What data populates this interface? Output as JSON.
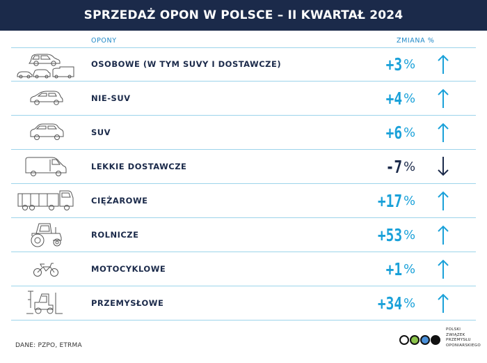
{
  "header": {
    "title": "SPRZEDAŻ OPON W POLSCE – II KWARTAŁ 2024"
  },
  "columns": {
    "tyres": "OPONY",
    "change": "ZMIANA %"
  },
  "rows": [
    {
      "label": "OSOBOWE (W TYM SUVY I DOSTAWCZE)",
      "value": "+3",
      "unit": "%",
      "direction": "up",
      "icon": "passenger-cars-icon"
    },
    {
      "label": "NIE-SUV",
      "value": "+4",
      "unit": "%",
      "direction": "up",
      "icon": "hatchback-car-icon"
    },
    {
      "label": "SUV",
      "value": "+6",
      "unit": "%",
      "direction": "up",
      "icon": "suv-car-icon"
    },
    {
      "label": "LEKKIE DOSTAWCZE",
      "value": "-7",
      "unit": "%",
      "direction": "down",
      "icon": "van-icon"
    },
    {
      "label": "CIĘŻAROWE",
      "value": "+17",
      "unit": "%",
      "direction": "up",
      "icon": "truck-icon"
    },
    {
      "label": "ROLNICZE",
      "value": "+53",
      "unit": "%",
      "direction": "up",
      "icon": "tractor-icon"
    },
    {
      "label": "MOTOCYKLOWE",
      "value": "+1",
      "unit": "%",
      "direction": "up",
      "icon": "motorcycle-icon"
    },
    {
      "label": "PRZEMYSŁOWE",
      "value": "+34",
      "unit": "%",
      "direction": "up",
      "icon": "forklift-icon"
    }
  ],
  "footer": {
    "source": "DANE: PZPO, ETRMA",
    "logo_lines": [
      "POLSKI",
      "ZWIĄZEK",
      "PRZEMYSŁU",
      "OPONIARSKIEGO"
    ]
  },
  "colors": {
    "navy": "#1b2a4a",
    "accent": "#1aa1d9",
    "divider": "#9cd4ea",
    "logo_green": "#8bc34a",
    "logo_blue": "#4a90d9"
  }
}
